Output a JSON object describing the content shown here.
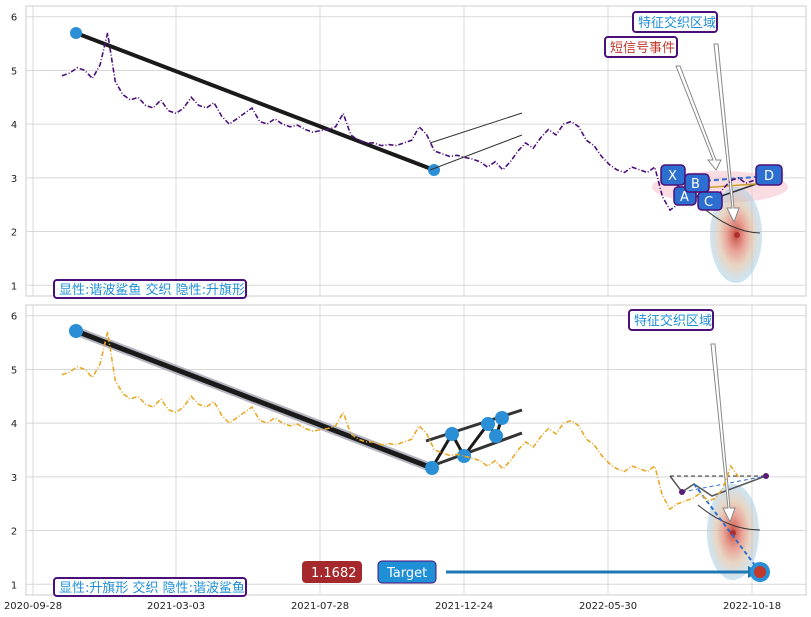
{
  "chart_data": [
    {
      "type": "line",
      "panel": "top",
      "ylim": [
        0.8,
        6.2
      ],
      "yticks": [
        "1",
        "2",
        "3",
        "4",
        "5",
        "6"
      ],
      "grid": true,
      "annotation": "显性:谐波鲨鱼 交织 隐性:升旗形",
      "labels": {
        "feature_zone": "特征交织区域",
        "short_signal": "短信号事件"
      },
      "pattern_points": [
        "X",
        "A",
        "B",
        "C",
        "D"
      ],
      "series": [
        {
          "color": "#4b0f7a",
          "style": "dash-dot",
          "values": [
            [
              0,
              4.9
            ],
            [
              1,
              4.95
            ],
            [
              2,
              5.05
            ],
            [
              3,
              5.0
            ],
            [
              4,
              4.85
            ],
            [
              5,
              5.1
            ],
            [
              6,
              5.7
            ],
            [
              7,
              4.8
            ],
            [
              8,
              4.55
            ],
            [
              9,
              4.45
            ],
            [
              10,
              4.5
            ],
            [
              11,
              4.35
            ],
            [
              12,
              4.3
            ],
            [
              13,
              4.45
            ],
            [
              14,
              4.25
            ],
            [
              15,
              4.2
            ],
            [
              16,
              4.3
            ],
            [
              17,
              4.5
            ],
            [
              18,
              4.35
            ],
            [
              19,
              4.3
            ],
            [
              20,
              4.4
            ],
            [
              21,
              4.15
            ],
            [
              22,
              4.0
            ],
            [
              23,
              4.1
            ],
            [
              24,
              4.2
            ],
            [
              25,
              4.3
            ],
            [
              26,
              4.05
            ],
            [
              27,
              4.0
            ],
            [
              28,
              4.1
            ],
            [
              29,
              4.0
            ],
            [
              30,
              3.95
            ],
            [
              31,
              3.98
            ],
            [
              32,
              3.9
            ],
            [
              33,
              3.85
            ],
            [
              34,
              3.88
            ],
            [
              35,
              3.9
            ],
            [
              36,
              3.95
            ],
            [
              37,
              4.2
            ],
            [
              38,
              3.8
            ],
            [
              39,
              3.7
            ],
            [
              40,
              3.65
            ],
            [
              41,
              3.65
            ],
            [
              42,
              3.6
            ],
            [
              43,
              3.62
            ],
            [
              44,
              3.6
            ],
            [
              45,
              3.65
            ],
            [
              46,
              3.7
            ],
            [
              47,
              3.95
            ],
            [
              48,
              3.8
            ],
            [
              49,
              3.5
            ],
            [
              50,
              3.45
            ],
            [
              51,
              3.4
            ],
            [
              52,
              3.42
            ],
            [
              53,
              3.38
            ],
            [
              54,
              3.35
            ],
            [
              55,
              3.3
            ],
            [
              56,
              3.2
            ],
            [
              57,
              3.3
            ],
            [
              58,
              3.15
            ],
            [
              59,
              3.3
            ],
            [
              60,
              3.5
            ],
            [
              61,
              3.65
            ],
            [
              62,
              3.55
            ],
            [
              63,
              3.75
            ],
            [
              64,
              3.9
            ],
            [
              65,
              3.8
            ],
            [
              66,
              4.0
            ],
            [
              67,
              4.05
            ],
            [
              68,
              3.95
            ],
            [
              69,
              3.7
            ],
            [
              70,
              3.6
            ],
            [
              71,
              3.4
            ],
            [
              72,
              3.25
            ],
            [
              73,
              3.15
            ],
            [
              74,
              3.1
            ],
            [
              75,
              3.2
            ],
            [
              76,
              3.15
            ],
            [
              77,
              3.1
            ],
            [
              78,
              3.2
            ],
            [
              79,
              2.65
            ],
            [
              80,
              2.4
            ],
            [
              81,
              2.5
            ],
            [
              82,
              2.55
            ],
            [
              83,
              2.6
            ],
            [
              84,
              2.7
            ],
            [
              85,
              2.55
            ],
            [
              86,
              2.6
            ],
            [
              87,
              2.8
            ],
            [
              88,
              2.95
            ],
            [
              89,
              3.0
            ],
            [
              90,
              2.9
            ],
            [
              91,
              2.95
            ],
            [
              92,
              3.0
            ],
            [
              93,
              3.05
            ],
            [
              94,
              3.0
            ],
            [
              95,
              3.05
            ]
          ]
        }
      ]
    },
    {
      "type": "line",
      "panel": "bottom",
      "ylim": [
        0.8,
        6.2
      ],
      "yticks": [
        "1",
        "2",
        "3",
        "4",
        "5",
        "6"
      ],
      "xticks": [
        "2020-09-28",
        "2021-03-03",
        "2021-07-28",
        "2021-12-24",
        "2022-05-30",
        "2022-10-18"
      ],
      "grid": true,
      "annotation": "显性:升旗形 交织 隐性:谐波鲨鱼",
      "labels": {
        "feature_zone": "特征交织区域",
        "value_badge": "1.1682",
        "target_badge": "Target"
      },
      "series": [
        {
          "color": "#e8a92a",
          "style": "dash-dot",
          "values": [
            [
              0,
              4.9
            ],
            [
              1,
              4.95
            ],
            [
              2,
              5.05
            ],
            [
              3,
              5.0
            ],
            [
              4,
              4.85
            ],
            [
              5,
              5.1
            ],
            [
              6,
              5.7
            ],
            [
              7,
              4.8
            ],
            [
              8,
              4.55
            ],
            [
              9,
              4.45
            ],
            [
              10,
              4.5
            ],
            [
              11,
              4.35
            ],
            [
              12,
              4.3
            ],
            [
              13,
              4.45
            ],
            [
              14,
              4.25
            ],
            [
              15,
              4.2
            ],
            [
              16,
              4.3
            ],
            [
              17,
              4.5
            ],
            [
              18,
              4.35
            ],
            [
              19,
              4.3
            ],
            [
              20,
              4.4
            ],
            [
              21,
              4.15
            ],
            [
              22,
              4.0
            ],
            [
              23,
              4.1
            ],
            [
              24,
              4.2
            ],
            [
              25,
              4.3
            ],
            [
              26,
              4.05
            ],
            [
              27,
              4.0
            ],
            [
              28,
              4.1
            ],
            [
              29,
              4.0
            ],
            [
              30,
              3.95
            ],
            [
              31,
              3.98
            ],
            [
              32,
              3.9
            ],
            [
              33,
              3.85
            ],
            [
              34,
              3.88
            ],
            [
              35,
              3.9
            ],
            [
              36,
              3.95
            ],
            [
              37,
              4.2
            ],
            [
              38,
              3.8
            ],
            [
              39,
              3.7
            ],
            [
              40,
              3.65
            ],
            [
              41,
              3.65
            ],
            [
              42,
              3.6
            ],
            [
              43,
              3.62
            ],
            [
              44,
              3.6
            ],
            [
              45,
              3.65
            ],
            [
              46,
              3.7
            ],
            [
              47,
              3.95
            ],
            [
              48,
              3.8
            ],
            [
              49,
              3.5
            ],
            [
              50,
              3.45
            ],
            [
              51,
              3.4
            ],
            [
              52,
              3.42
            ],
            [
              53,
              3.38
            ],
            [
              54,
              3.35
            ],
            [
              55,
              3.3
            ],
            [
              56,
              3.2
            ],
            [
              57,
              3.3
            ],
            [
              58,
              3.15
            ],
            [
              59,
              3.3
            ],
            [
              60,
              3.5
            ],
            [
              61,
              3.65
            ],
            [
              62,
              3.55
            ],
            [
              63,
              3.75
            ],
            [
              64,
              3.9
            ],
            [
              65,
              3.8
            ],
            [
              66,
              4.0
            ],
            [
              67,
              4.05
            ],
            [
              68,
              3.95
            ],
            [
              69,
              3.7
            ],
            [
              70,
              3.6
            ],
            [
              71,
              3.4
            ],
            [
              72,
              3.25
            ],
            [
              73,
              3.15
            ],
            [
              74,
              3.1
            ],
            [
              75,
              3.2
            ],
            [
              76,
              3.15
            ],
            [
              77,
              3.1
            ],
            [
              78,
              3.2
            ],
            [
              79,
              2.65
            ],
            [
              80,
              2.4
            ],
            [
              81,
              2.5
            ],
            [
              82,
              2.55
            ],
            [
              83,
              2.6
            ],
            [
              84,
              2.7
            ],
            [
              85,
              2.55
            ],
            [
              86,
              2.6
            ],
            [
              87,
              2.8
            ],
            [
              88,
              3.2
            ],
            [
              89,
              3.0
            ]
          ]
        }
      ]
    }
  ]
}
